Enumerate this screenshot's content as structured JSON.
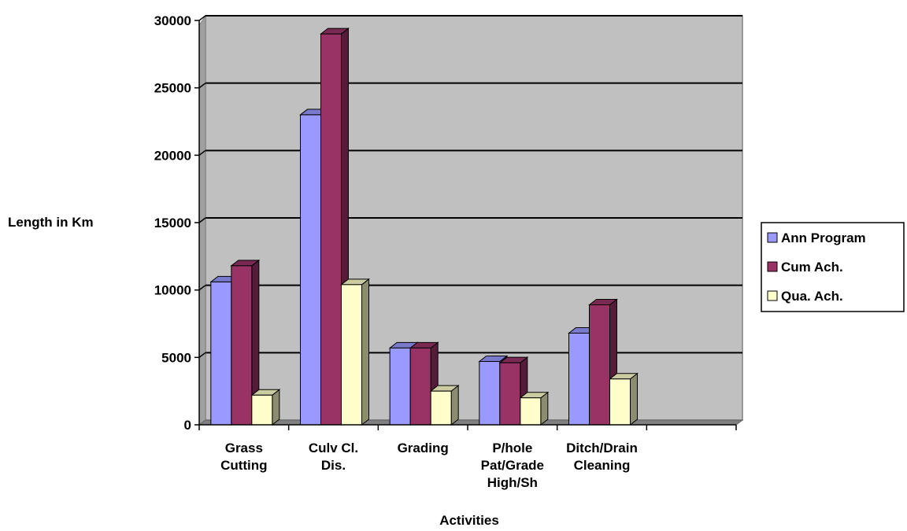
{
  "chart_data": {
    "type": "bar",
    "xlabel": "Activities",
    "ylabel": "Length in Km",
    "ylim": [
      0,
      30000
    ],
    "y_ticks": [
      0,
      5000,
      10000,
      15000,
      20000,
      25000,
      30000
    ],
    "categories": [
      [
        "Grass",
        "Cutting"
      ],
      [
        "Culv Cl.",
        "Dis."
      ],
      [
        "Grading"
      ],
      [
        "P/hole",
        "Pat/Grade",
        "High/Sh"
      ],
      [
        "Ditch/Drain",
        "Cleaning"
      ],
      []
    ],
    "series": [
      {
        "name": "Ann Program",
        "color": "#9999ff",
        "values": [
          10600,
          23000,
          5700,
          4700,
          6800,
          null
        ]
      },
      {
        "name": "Cum Ach.",
        "color": "#993366",
        "values": [
          11800,
          29000,
          5700,
          4600,
          8900,
          null
        ]
      },
      {
        "name": "Qua. Ach.",
        "color": "#ffffcc",
        "values": [
          2200,
          10400,
          2500,
          2000,
          3400,
          null
        ]
      }
    ],
    "legend_position": "right",
    "grid": true,
    "plot_background": "#c0c0c0"
  }
}
